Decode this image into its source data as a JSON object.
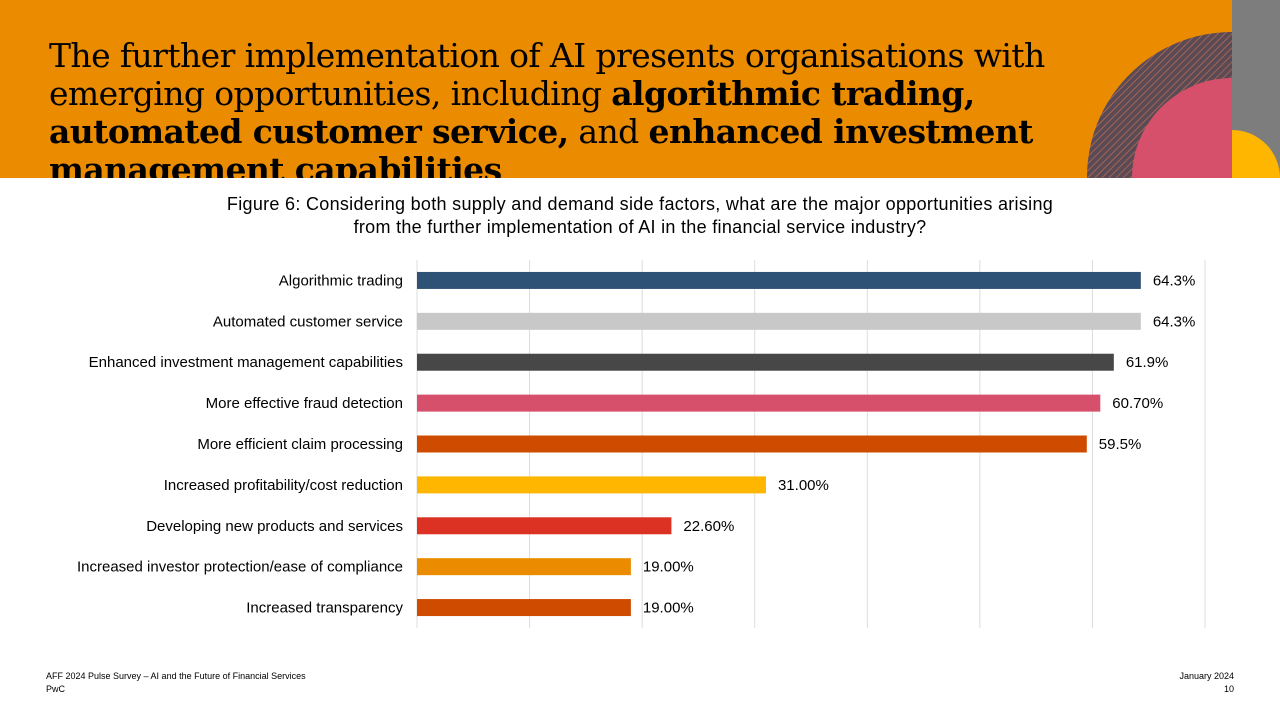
{
  "header": {
    "title_parts": [
      {
        "text": "The further implementation of AI presents organisations with emerging opportunities, including ",
        "bold": false
      },
      {
        "text": "algorithmic trading, automated customer service,",
        "bold": true
      },
      {
        "text": " and ",
        "bold": false
      },
      {
        "text": "enhanced investment management capabilities",
        "bold": true
      }
    ]
  },
  "figure": {
    "title_line1": "Figure 6: Considering both supply and demand side factors, what are the major opportunities arising",
    "title_line2": "from the further implementation of AI in the financial service industry?"
  },
  "colors": {
    "header_bg": "#EB8C00",
    "strip": "#7d7d7d",
    "pink": "#D6506B",
    "yellow": "#FFB600"
  },
  "chart_data": {
    "type": "bar",
    "orientation": "horizontal",
    "categories": [
      "Algorithmic trading",
      "Automated customer service",
      "Enhanced investment management capabilities",
      "More effective fraud detection",
      "More efficient claim processing",
      "Increased profitability/cost reduction",
      "Developing new products and services",
      "Increased investor protection/ease of compliance",
      "Increased transparency"
    ],
    "values": [
      64.3,
      64.3,
      61.9,
      60.7,
      59.5,
      31.0,
      22.6,
      19.0,
      19.0
    ],
    "value_labels": [
      "64.3%",
      "64.3%",
      "61.9%",
      "60.70%",
      "59.5%",
      "31.00%",
      "22.60%",
      "19.00%",
      "19.00%"
    ],
    "colors": [
      "#2D5276",
      "#C8C8C8",
      "#474747",
      "#D6506B",
      "#CF4B00",
      "#FFB600",
      "#DB3224",
      "#EB8C00",
      "#CF4B00"
    ],
    "xlim": [
      0,
      70
    ],
    "grid": true,
    "legend": "none"
  },
  "footer": {
    "source": "AFF 2024 Pulse Survey – AI and the Future of Financial Services",
    "company": "PwC",
    "date": "January 2024",
    "page": "10"
  }
}
